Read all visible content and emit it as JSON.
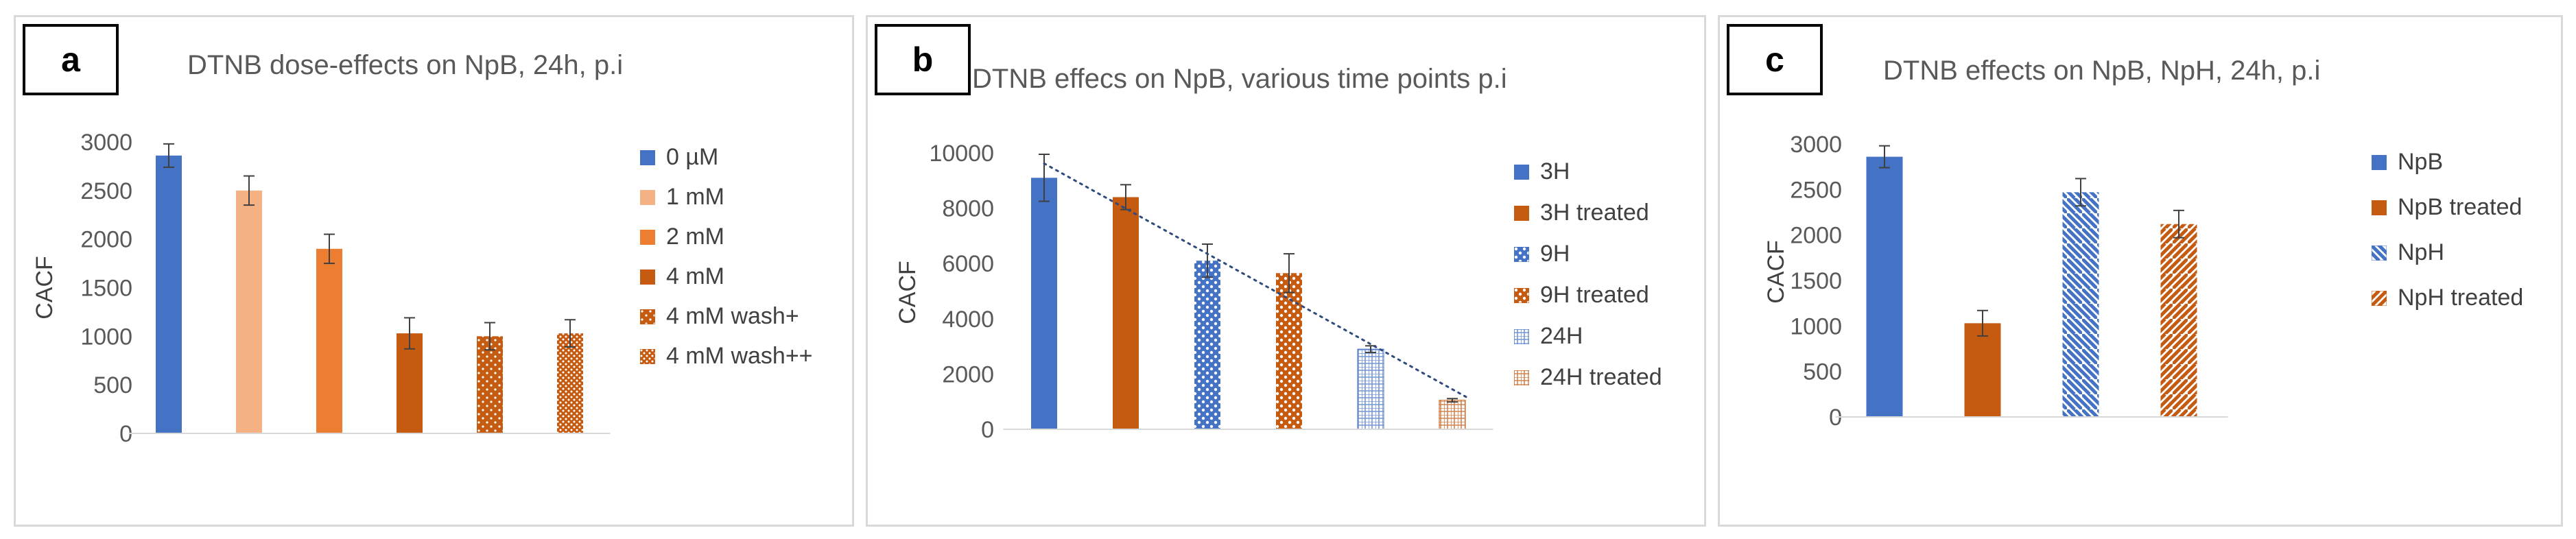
{
  "colors": {
    "blue": "#4472c4",
    "orange": "#c55a11",
    "light_orange": "#f4b183",
    "mid_orange": "#ed7d31",
    "axis_text": "#595959",
    "title_text": "#595959",
    "err": "#404040"
  },
  "chart_data": [
    {
      "type": "bar",
      "panel_label": "a",
      "title": "DTNB dose-effects on NpB, 24h, p.i",
      "ylabel": "CACF",
      "ylim": [
        0,
        3000
      ],
      "yticks": [
        "0",
        "500",
        "1000",
        "1500",
        "2000",
        "2500",
        "3000"
      ],
      "grid": false,
      "legend": "right",
      "series": [
        {
          "name": "0 µM",
          "value": 2860,
          "error": 120,
          "color": "#4472c4",
          "pattern": "solid"
        },
        {
          "name": "1 mM",
          "value": 2500,
          "error": 150,
          "color": "#f4b183",
          "pattern": "solid"
        },
        {
          "name": "2 mM",
          "value": 1900,
          "error": 150,
          "color": "#ed7d31",
          "pattern": "solid"
        },
        {
          "name": "4 mM",
          "value": 1030,
          "error": 160,
          "color": "#c55a11",
          "pattern": "solid"
        },
        {
          "name": "4 mM wash+",
          "value": 1000,
          "error": 140,
          "color": "#c55a11",
          "pattern": "dots"
        },
        {
          "name": "4 mM wash++",
          "value": 1030,
          "error": 140,
          "color": "#c55a11",
          "pattern": "dots-dense"
        }
      ]
    },
    {
      "type": "bar",
      "panel_label": "b",
      "title": "DTNB effecs on NpB, various time points p.i",
      "ylabel": "CACF",
      "ylim": [
        0,
        10000
      ],
      "yticks": [
        "0",
        "2000",
        "4000",
        "6000",
        "8000",
        "10000"
      ],
      "grid": false,
      "legend": "right",
      "trendline": "linear",
      "series": [
        {
          "name": "3H",
          "value": 9100,
          "error": 850,
          "color": "#4472c4",
          "pattern": "solid"
        },
        {
          "name": "3H treated",
          "value": 8400,
          "error": 450,
          "color": "#c55a11",
          "pattern": "solid"
        },
        {
          "name": "9H",
          "value": 6100,
          "error": 600,
          "color": "#4472c4",
          "pattern": "dots-large"
        },
        {
          "name": "9H treated",
          "value": 5650,
          "error": 700,
          "color": "#c55a11",
          "pattern": "dots-large"
        },
        {
          "name": "24H",
          "value": 2900,
          "error": 120,
          "color": "#4472c4",
          "pattern": "checker"
        },
        {
          "name": "24H treated",
          "value": 1050,
          "error": 60,
          "color": "#c55a11",
          "pattern": "checker"
        }
      ]
    },
    {
      "type": "bar",
      "panel_label": "c",
      "title": "DTNB effects on NpB, NpH, 24h, p.i",
      "ylabel": "CACF",
      "ylim": [
        0,
        3000
      ],
      "yticks": [
        "0",
        "500",
        "1000",
        "1500",
        "2000",
        "2500",
        "3000"
      ],
      "grid": false,
      "legend": "right",
      "series": [
        {
          "name": "NpB",
          "value": 2860,
          "error": 120,
          "color": "#4472c4",
          "pattern": "solid"
        },
        {
          "name": "NpB treated",
          "value": 1030,
          "error": 140,
          "color": "#c55a11",
          "pattern": "solid"
        },
        {
          "name": "NpH",
          "value": 2470,
          "error": 150,
          "color": "#4472c4",
          "pattern": "diag-down"
        },
        {
          "name": "NpH treated",
          "value": 2120,
          "error": 150,
          "color": "#c55a11",
          "pattern": "diag-up"
        }
      ]
    }
  ]
}
